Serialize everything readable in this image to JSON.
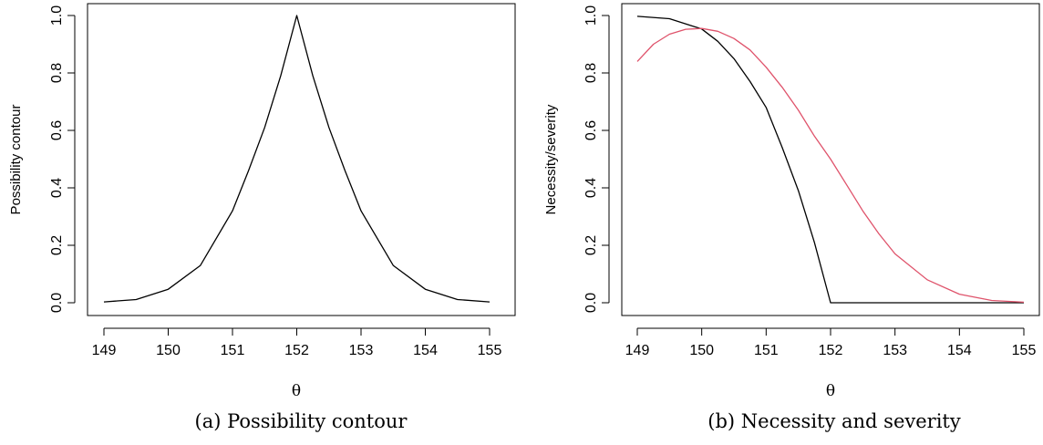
{
  "panels": [
    {
      "caption": "(a) Possibility contour",
      "xlabel": "θ",
      "ylabel": "Possibility contour"
    },
    {
      "caption": "(b) Necessity and severity",
      "xlabel": "θ",
      "ylabel": "Necessity/severity"
    }
  ],
  "chart_data": [
    {
      "type": "line",
      "title": "",
      "xlabel": "θ",
      "ylabel": "Possibility contour",
      "xlim": [
        149,
        155
      ],
      "ylim": [
        0,
        1
      ],
      "x_ticks": [
        149,
        150,
        151,
        152,
        153,
        154,
        155
      ],
      "y_ticks": [
        0.0,
        0.2,
        0.4,
        0.6,
        0.8,
        1.0
      ],
      "x_tick_labels": [
        "149",
        "150",
        "151",
        "152",
        "153",
        "154",
        "155"
      ],
      "y_tick_labels": [
        "0.0",
        "0.2",
        "0.4",
        "0.6",
        "0.8",
        "1.0"
      ],
      "grid": false,
      "series": [
        {
          "color": "#000000",
          "x": [
            149,
            149.5,
            150,
            150.5,
            151,
            151.25,
            151.5,
            151.75,
            152,
            152.25,
            152.5,
            152.75,
            153,
            153.5,
            154,
            154.5,
            155
          ],
          "y": [
            0.003,
            0.011,
            0.047,
            0.13,
            0.32,
            0.46,
            0.61,
            0.79,
            1.0,
            0.79,
            0.61,
            0.46,
            0.32,
            0.13,
            0.047,
            0.011,
            0.003
          ]
        }
      ]
    },
    {
      "type": "line",
      "title": "",
      "xlabel": "θ",
      "ylabel": "Necessity/severity",
      "xlim": [
        149,
        155
      ],
      "ylim": [
        0,
        1
      ],
      "x_ticks": [
        149,
        150,
        151,
        152,
        153,
        154,
        155
      ],
      "y_ticks": [
        0.0,
        0.2,
        0.4,
        0.6,
        0.8,
        1.0
      ],
      "x_tick_labels": [
        "149",
        "150",
        "151",
        "152",
        "153",
        "154",
        "155"
      ],
      "y_tick_labels": [
        "0.0",
        "0.2",
        "0.4",
        "0.6",
        "0.8",
        "1.0"
      ],
      "grid": false,
      "series": [
        {
          "color": "#000000",
          "x": [
            149,
            149.5,
            150,
            150.25,
            150.5,
            150.75,
            151,
            151.25,
            151.5,
            151.75,
            152,
            152.5,
            153,
            154,
            155
          ],
          "y": [
            0.997,
            0.989,
            0.953,
            0.91,
            0.85,
            0.77,
            0.68,
            0.54,
            0.39,
            0.21,
            0.0,
            0.0,
            0.0,
            0.0,
            0.0
          ]
        },
        {
          "color": "#DF536B",
          "x": [
            149,
            149.25,
            149.5,
            149.75,
            150,
            150.25,
            150.5,
            150.75,
            151,
            151.25,
            151.5,
            151.75,
            152,
            152.25,
            152.5,
            152.75,
            153,
            153.5,
            154,
            154.5,
            155
          ],
          "y": [
            0.84,
            0.9,
            0.935,
            0.952,
            0.955,
            0.945,
            0.92,
            0.88,
            0.82,
            0.75,
            0.67,
            0.58,
            0.5,
            0.41,
            0.32,
            0.24,
            0.17,
            0.08,
            0.03,
            0.008,
            0.002
          ]
        }
      ]
    }
  ]
}
